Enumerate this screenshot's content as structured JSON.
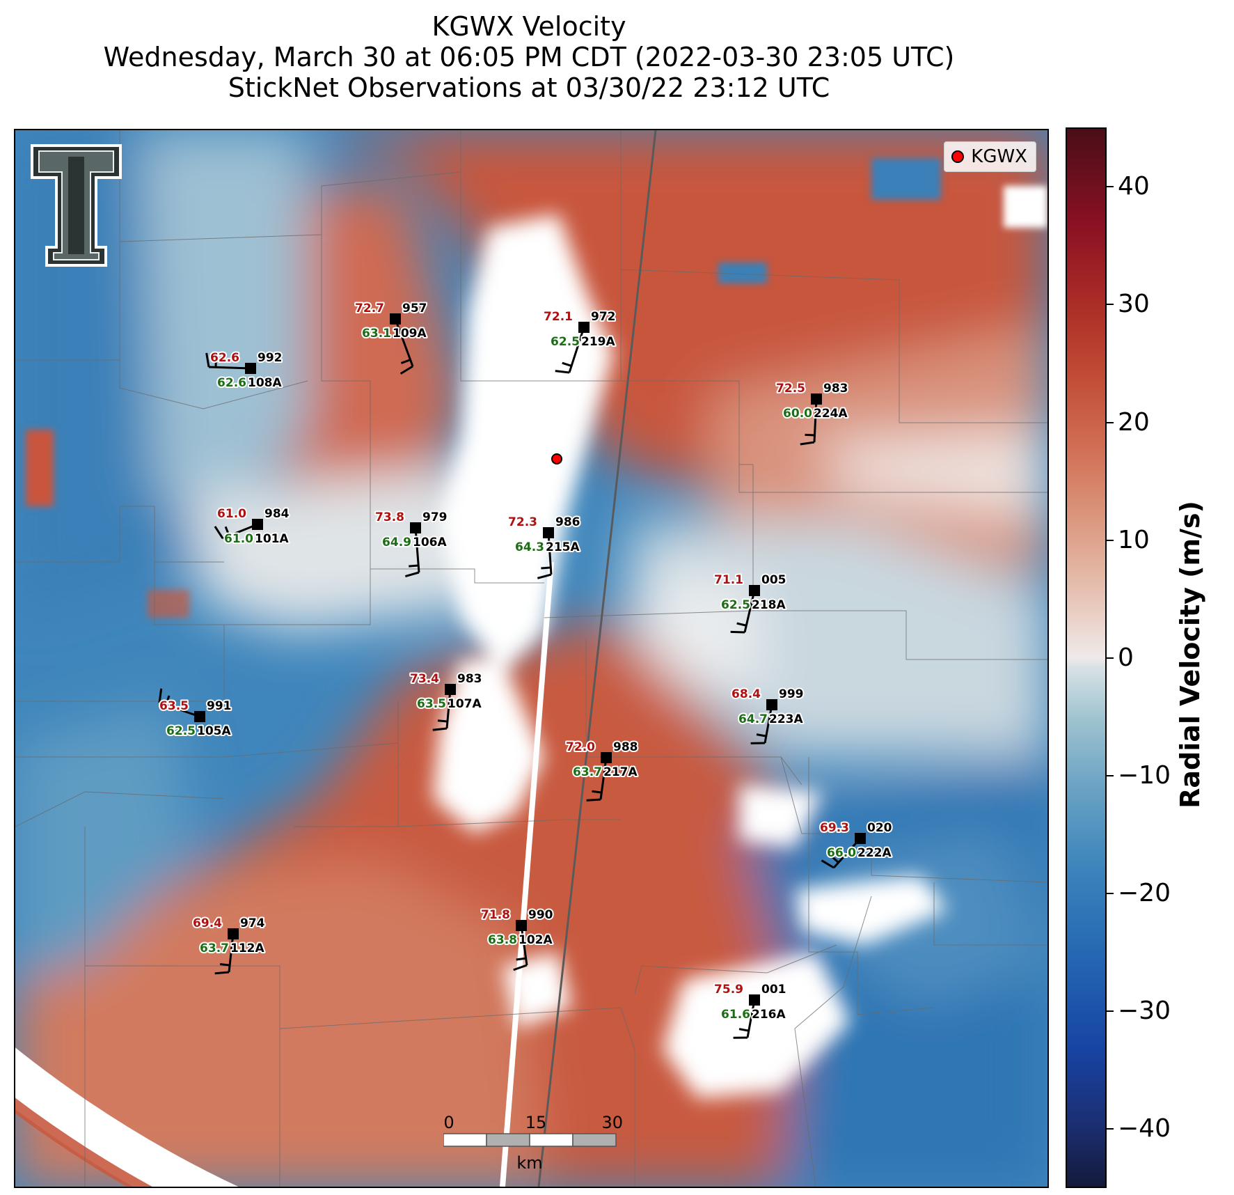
{
  "header": {
    "title": "KGWX Velocity",
    "subtitle": "Wednesday, March 30 at 06:05 PM CDT (2022-03-30 23:05 UTC)",
    "obs_line": "StickNet Observations at 03/30/22 23:12 UTC"
  },
  "legend": {
    "label": "KGWX",
    "marker_color": "#ff0000"
  },
  "colorbar": {
    "label": "Radial Velocity (m/s)",
    "ticks": [
      "40",
      "30",
      "20",
      "10",
      "0",
      "−10",
      "−20",
      "−30",
      "−40"
    ]
  },
  "scalebar": {
    "ticks": [
      "0",
      "15",
      "30"
    ],
    "unit": "km"
  },
  "logo": {
    "text": "TT"
  },
  "stations": [
    {
      "id": "957",
      "name": "109A",
      "temp": "72.7",
      "dew": "63.1"
    },
    {
      "id": "972",
      "name": "219A",
      "temp": "72.1",
      "dew": "62.5"
    },
    {
      "id": "992",
      "name": "108A",
      "temp": "62.6",
      "dew": "62.6"
    },
    {
      "id": "983",
      "name": "224A",
      "temp": "72.5",
      "dew": "60.0"
    },
    {
      "id": "984",
      "name": "101A",
      "temp": "61.0",
      "dew": "61.0"
    },
    {
      "id": "979",
      "name": "106A",
      "temp": "73.8",
      "dew": "64.9"
    },
    {
      "id": "986",
      "name": "215A",
      "temp": "72.3",
      "dew": "64.3"
    },
    {
      "id": "005",
      "name": "218A",
      "temp": "71.1",
      "dew": "62.5"
    },
    {
      "id": "983",
      "name": "107A",
      "temp": "73.4",
      "dew": "63.5"
    },
    {
      "id": "991",
      "name": "105A",
      "temp": "63.5",
      "dew": "62.5"
    },
    {
      "id": "999",
      "name": "223A",
      "temp": "68.4",
      "dew": "64.7"
    },
    {
      "id": "988",
      "name": "217A",
      "temp": "72.0",
      "dew": "63.7"
    },
    {
      "id": "020",
      "name": "222A",
      "temp": "69.3",
      "dew": "66.0"
    },
    {
      "id": "974",
      "name": "112A",
      "temp": "69.4",
      "dew": "63.7"
    },
    {
      "id": "990",
      "name": "102A",
      "temp": "71.8",
      "dew": "63.8"
    },
    {
      "id": "001",
      "name": "216A",
      "temp": "75.9",
      "dew": "61.6"
    }
  ]
}
